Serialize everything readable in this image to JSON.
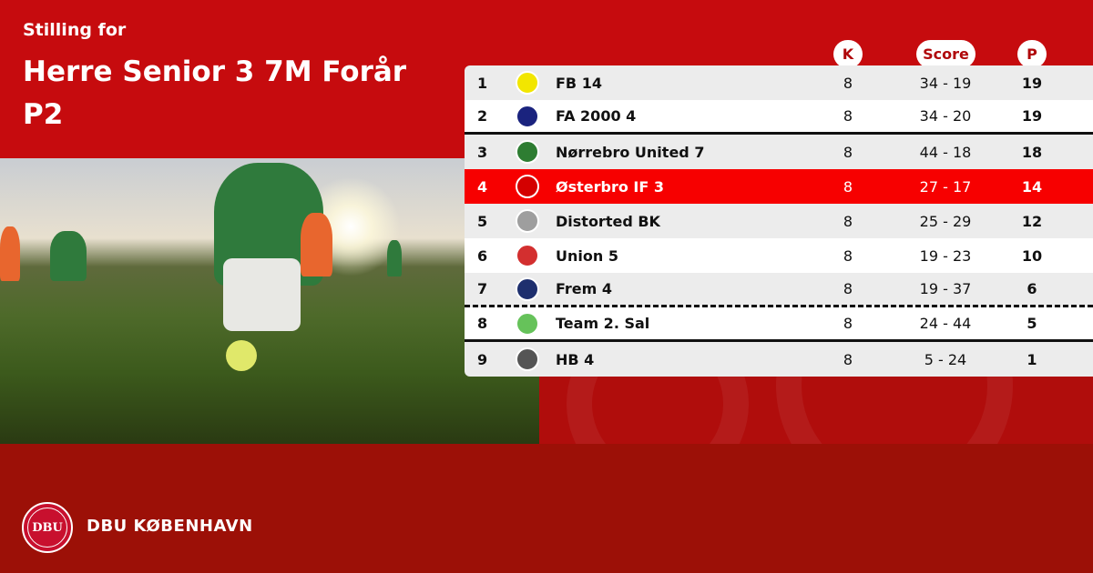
{
  "header": {
    "subtitle": "Stilling for",
    "title_line1": "Herre Senior 3 7M Forår",
    "title_line2": "P2"
  },
  "columns": {
    "k": "K",
    "score": "Score",
    "p": "P"
  },
  "colors": {
    "primary_red": "#c60b0e",
    "highlight_row": "#f70000",
    "footer_red": "#9c1007"
  },
  "rows": [
    {
      "pos": "1",
      "team": "FB 14",
      "k": "8",
      "score": "34 - 19",
      "p": "19",
      "logo_color": "#f2e600"
    },
    {
      "pos": "2",
      "team": "FA 2000 4",
      "k": "8",
      "score": "34 - 20",
      "p": "19",
      "logo_color": "#1a237e"
    },
    {
      "pos": "3",
      "team": "Nørrebro United 7",
      "k": "8",
      "score": "44 - 18",
      "p": "18",
      "logo_color": "#2e7d32"
    },
    {
      "pos": "4",
      "team": "Østerbro IF 3",
      "k": "8",
      "score": "27 - 17",
      "p": "14",
      "logo_color": "#d40000",
      "highlighted": true
    },
    {
      "pos": "5",
      "team": "Distorted BK",
      "k": "8",
      "score": "25 - 29",
      "p": "12",
      "logo_color": "#9e9e9e"
    },
    {
      "pos": "6",
      "team": "Union 5",
      "k": "8",
      "score": "19 - 23",
      "p": "10",
      "logo_color": "#d32f2f"
    },
    {
      "pos": "7",
      "team": "Frem 4",
      "k": "8",
      "score": "19 - 37",
      "p": "6",
      "logo_color": "#1e2f6e"
    },
    {
      "pos": "8",
      "team": "Team 2. Sal",
      "k": "8",
      "score": "24 - 44",
      "p": "5",
      "logo_color": "#66c25a"
    },
    {
      "pos": "9",
      "team": "HB 4",
      "k": "8",
      "score": "5 - 24",
      "p": "1",
      "logo_color": "#555555"
    }
  ],
  "footer": {
    "brand": "DBU KØBENHAVN",
    "seal_text": "DBU"
  }
}
